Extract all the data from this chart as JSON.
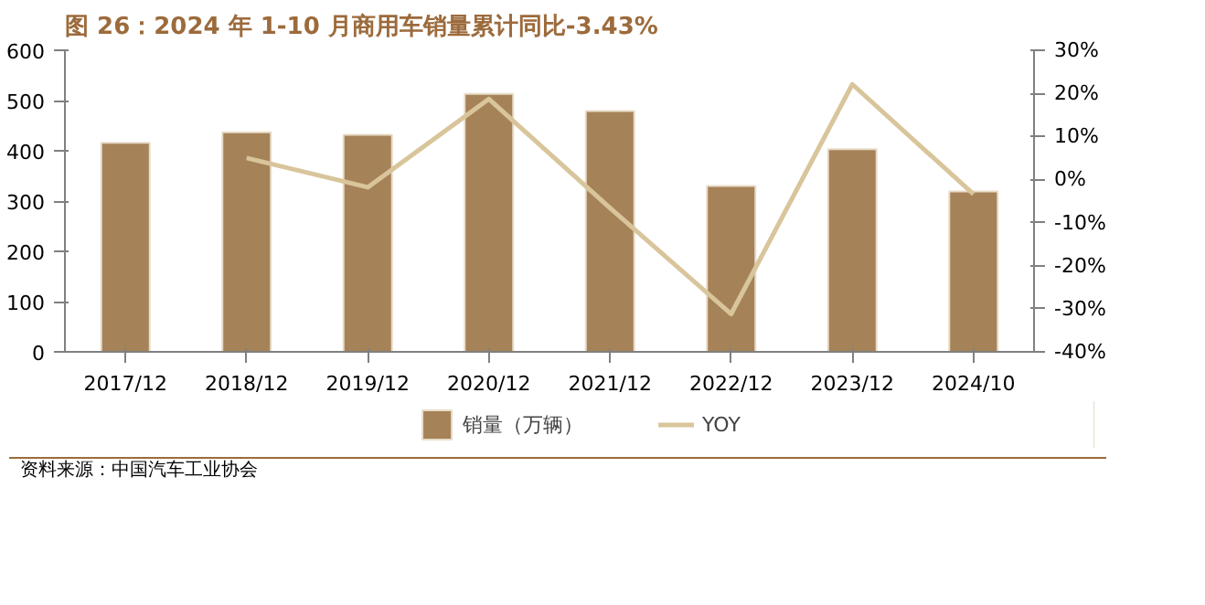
{
  "chart_data": {
    "type": "bar",
    "title": "图 26：2024 年 1-10 月商用车销量累计同比-3.43%",
    "categories": [
      "2017/12",
      "2018/12",
      "2019/12",
      "2020/12",
      "2021/12",
      "2022/12",
      "2023/12",
      "2024/10"
    ],
    "series": [
      {
        "name": "销量（万辆）",
        "color": "#a68258",
        "values": [
          416,
          437,
          432,
          513,
          479,
          330,
          403,
          319
        ]
      },
      {
        "name": "YOY",
        "type": "line",
        "axis": "y2",
        "color": "#d9c59b",
        "values": [
          null,
          5.0,
          -1.8,
          18.7,
          -6.6,
          -31.2,
          22.1,
          -3.4
        ]
      }
    ],
    "ylim": [
      0,
      600
    ],
    "yticks": [
      0,
      100,
      200,
      300,
      400,
      500,
      600
    ],
    "y2lim": [
      -40,
      30
    ],
    "y2ticks": [
      {
        "value": -40,
        "label": "-40%"
      },
      {
        "value": -30,
        "label": "-30%"
      },
      {
        "value": -20,
        "label": "-20%"
      },
      {
        "value": -10,
        "label": "-10%"
      },
      {
        "value": 0,
        "label": "0%"
      },
      {
        "value": 10,
        "label": "10%"
      },
      {
        "value": 20,
        "label": "20%"
      },
      {
        "value": 30,
        "label": "30%"
      }
    ],
    "grid": false,
    "legend": "bottom",
    "annotations": [
      "资料来源：中国汽车工业协会"
    ]
  }
}
